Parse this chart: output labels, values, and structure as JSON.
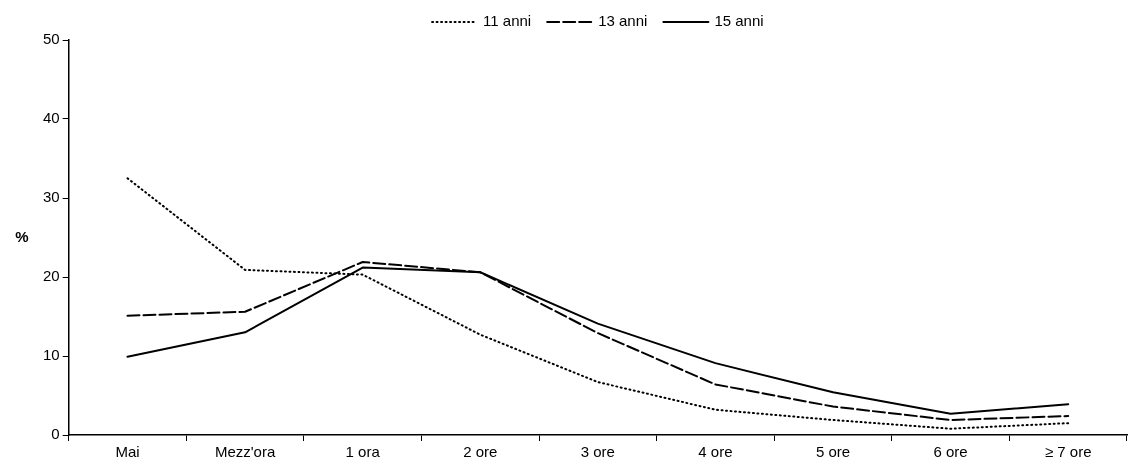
{
  "chart_data": {
    "type": "line",
    "ylabel": "%",
    "categories": [
      "Mai",
      "Mezz'ora",
      "1 ora",
      "2 ore",
      "3 ore",
      "4 ore",
      "5 ore",
      "6 ore",
      "≥ 7 ore"
    ],
    "series": [
      {
        "name": "11 anni",
        "color": "#000000",
        "line_style": "dotted",
        "values": [
          32.5,
          20.9,
          20.3,
          12.7,
          6.7,
          3.2,
          1.9,
          0.8,
          1.5
        ]
      },
      {
        "name": "13 anni",
        "color": "#000000",
        "line_style": "dashed",
        "values": [
          15.1,
          15.6,
          21.9,
          20.6,
          12.9,
          6.4,
          3.6,
          1.9,
          2.4
        ]
      },
      {
        "name": "15 anni",
        "color": "#000000",
        "line_style": "solid",
        "values": [
          9.9,
          13.0,
          21.2,
          20.6,
          14.1,
          9.1,
          5.4,
          2.7,
          3.9
        ]
      }
    ],
    "ylim": [
      0,
      50
    ],
    "yticks": [
      0,
      10,
      20,
      30,
      40,
      50
    ],
    "grid": false,
    "legend": "top",
    "marker": "none"
  }
}
